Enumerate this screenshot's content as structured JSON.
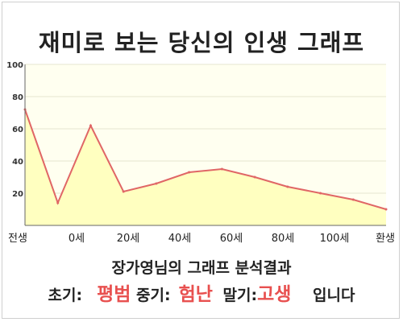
{
  "title": "재미로 보는 당신의 인생 그래프",
  "subtitle": "장가영님의 그래프 분석결과",
  "summary": {
    "early_label": "초기:",
    "early_value": "평범",
    "mid_label": "중기:",
    "mid_value": "험난",
    "late_label": "말기:",
    "late_value": "고생",
    "ending": "입니다"
  },
  "colors": {
    "line": "#e06666",
    "area": "#ffffc0",
    "plot_background": "#fffff0",
    "highlight": "#e8504f"
  },
  "chart_data": {
    "type": "area",
    "title": "재미로 보는 당신의 인생 그래프",
    "xlabel": "",
    "ylabel": "",
    "ylim": [
      0,
      100
    ],
    "yticks": [
      20,
      40,
      60,
      80,
      100
    ],
    "grid": true,
    "x_ticks": [
      "전생",
      "0세",
      "20세",
      "40세",
      "60세",
      "80세",
      "100세",
      "환생"
    ],
    "points": [
      {
        "x": "전생",
        "y": 72
      },
      {
        "x": "0세",
        "y": 14
      },
      {
        "x": "20세",
        "y": 62
      },
      {
        "x": "30세",
        "y": 21
      },
      {
        "x": "40세",
        "y": 26
      },
      {
        "x": "50세",
        "y": 33
      },
      {
        "x": "60세",
        "y": 35
      },
      {
        "x": "70세",
        "y": 30
      },
      {
        "x": "80세",
        "y": 24
      },
      {
        "x": "90세",
        "y": 20
      },
      {
        "x": "100세",
        "y": 16
      },
      {
        "x": "환생",
        "y": 10
      }
    ]
  }
}
